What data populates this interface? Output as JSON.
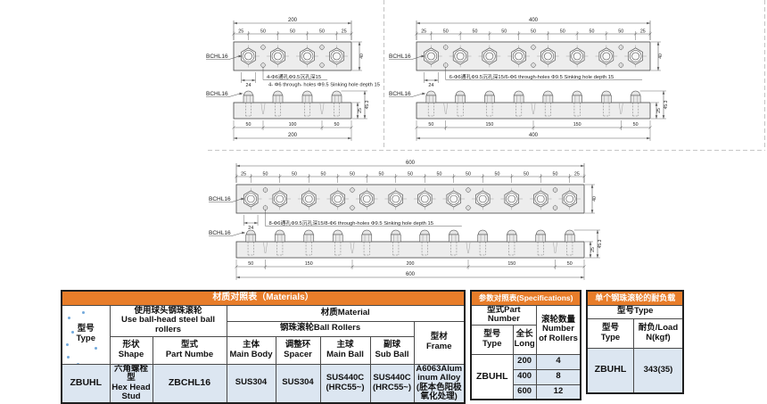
{
  "colors": {
    "accent_orange": "#E87D2A",
    "model_red": "#C00000",
    "cell_blue": "#DCE6F1",
    "drawing_line": "#5a5a5a"
  },
  "drawings": {
    "plan_200": {
      "label": "BCHL16",
      "total": "200",
      "segments": [
        "25",
        "50",
        "50",
        "50",
        "25"
      ],
      "height": "40",
      "hex_width": "24",
      "note_cn": "4-Φ6通孔Φ9.5沉孔深15",
      "note_en": "4- Φ6 through- holes Φ9.5 Sinking hole depth 15"
    },
    "plan_400": {
      "label": "BCHL16",
      "total": "400",
      "segments": [
        "25",
        "50",
        "50",
        "50",
        "50",
        "50",
        "50",
        "50",
        "25"
      ],
      "height": "40",
      "hex_width": "24",
      "note": "6-Φ6通孔Φ9.5沉孔深15/6-Φ6 through-holes Φ9.5 Sinking hole depth 15"
    },
    "plan_600": {
      "label": "BCHL16",
      "total": "600",
      "segments": [
        "25",
        "50",
        "50",
        "50",
        "50",
        "50",
        "50",
        "50",
        "50",
        "50",
        "50",
        "50",
        "25"
      ],
      "height": "40",
      "hex_width": "24",
      "note": "8-Φ6通孔Φ9.5沉孔深15/8-Φ6 through-holes Φ9.5 Sinking hole depth 15"
    },
    "side_200": {
      "label": "BCHL16",
      "total": "200",
      "segments": [
        "50",
        "100",
        "50"
      ],
      "bar_height": "25",
      "overall_height": "45.3"
    },
    "side_400": {
      "label": "BCHL16",
      "total": "400",
      "segments": [
        "50",
        "150",
        "150",
        "50"
      ],
      "bar_height": "25",
      "overall_height": "45.3"
    },
    "side_600": {
      "label": "BCHL16",
      "total": "600",
      "segments": [
        "50",
        "150",
        "200",
        "150",
        "50"
      ],
      "bar_height": "25",
      "overall_height": "45.3"
    }
  },
  "tables": {
    "materials": {
      "title": "材质对照表（Materials）",
      "col_type": "型号\nType",
      "col_use": "使用球头钢珠滚轮\nUse ball-head steel ball rollers",
      "col_material": "材质Material",
      "col_ball_rollers": "钢珠滚轮Ball Rollers",
      "col_frame": "型材\nFrame",
      "col_shape": "形状\nShape",
      "col_part": "型式\nPart Numbe",
      "col_main_body": "主体\nMain Body",
      "col_spacer": "调整环\nSpacer",
      "col_main_ball": "主球\nMain Ball",
      "col_sub_ball": "副球\nSub Ball",
      "val_type": "ZBUHL",
      "val_shape": "六角螺栓型\nHex Head Stud",
      "val_part": "ZBCHL16",
      "val_main_body": "SUS304",
      "val_spacer": "SUS304",
      "val_main_ball": "SUS440C\n(HRC55~)",
      "val_sub_ball": "SUS440C\n(HRC55~)",
      "val_frame": "A6063Aluminum Alloy(胚本色阳极氧化处理)"
    },
    "specifications": {
      "title": "参数对照表(Specifications)",
      "col_part_number": "型式Part Number",
      "col_rollers": "滚轮数量\nNumber of Rollers",
      "col_type": "型号\nType",
      "col_long": "全长\nLong",
      "val_type": "ZBUHL",
      "rows": [
        {
          "long": "200",
          "rollers": "4"
        },
        {
          "long": "400",
          "rollers": "8"
        },
        {
          "long": "600",
          "rollers": "12"
        }
      ]
    },
    "load": {
      "title": "单个钢珠滚轮的耐负载",
      "col_group": "型号Type",
      "col_type": "型号\nType",
      "col_load": "耐负/Load\nN(kgf)",
      "val_type": "ZBUHL",
      "val_load": "343(35)"
    }
  }
}
